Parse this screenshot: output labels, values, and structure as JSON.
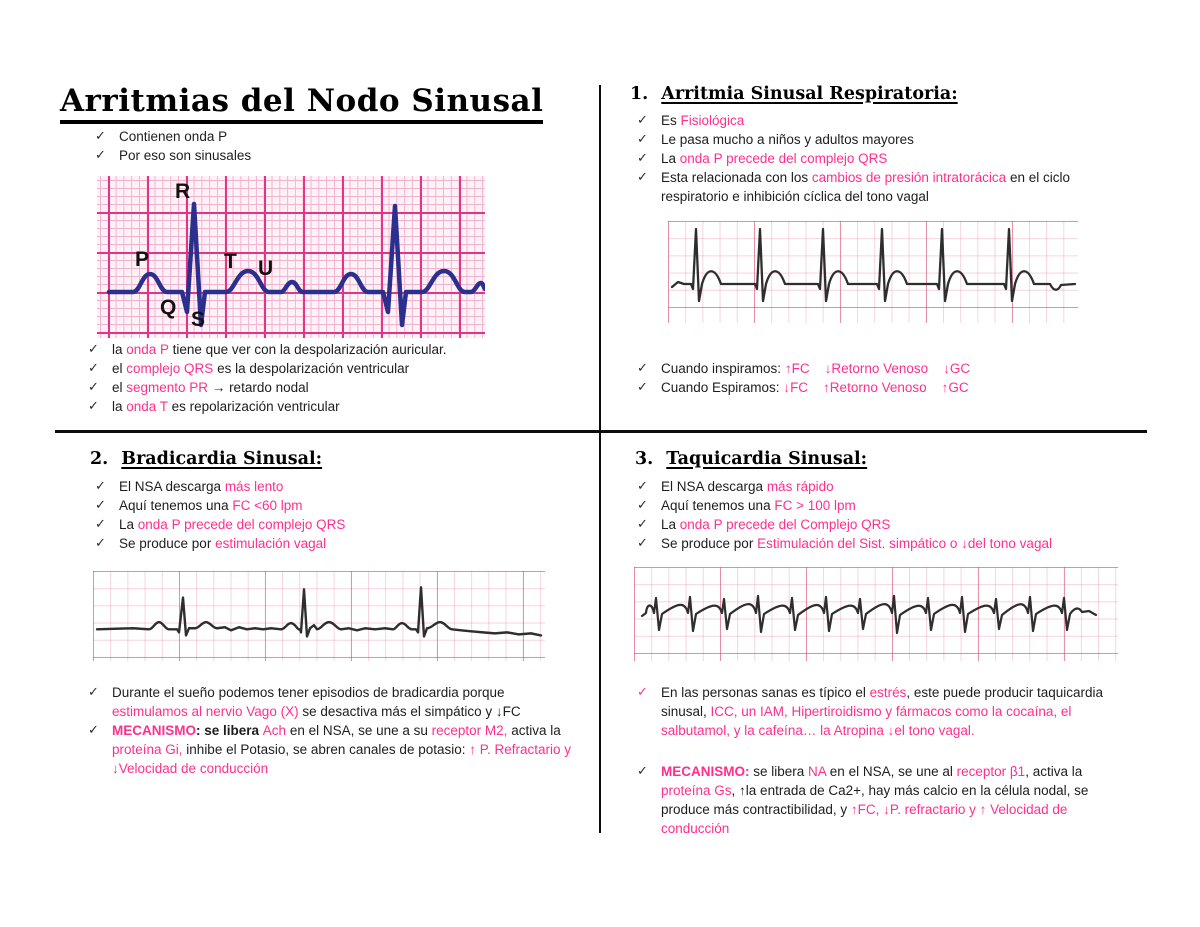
{
  "colors": {
    "pink_text": "#ff2f8e",
    "body_text": "#1d1d1d",
    "ecg_trace_navy": "#2b2f8e",
    "ecg_grid_pink": "#e73384",
    "strip_trace": "#2e2e2e"
  },
  "icons": {
    "check": "✓"
  },
  "title": "Arritmias del Nodo Sinusal",
  "top_left": {
    "intro": [
      [
        {
          "t": "Contienen onda P",
          "s": "k"
        }
      ],
      [
        {
          "t": "Por eso son sinusales",
          "s": "k"
        }
      ]
    ],
    "ecg_labels": [
      "P",
      "Q",
      "R",
      "S",
      "T",
      "U"
    ],
    "notes": [
      [
        {
          "t": "la ",
          "s": "k"
        },
        {
          "t": "onda P",
          "s": "p"
        },
        {
          "t": " tiene que ver con la despolarización auricular.",
          "s": "k"
        }
      ],
      [
        {
          "t": "el ",
          "s": "k"
        },
        {
          "t": "complejo QRS",
          "s": "p"
        },
        {
          "t": " es la despolarización ventricular",
          "s": "k"
        }
      ],
      [
        {
          "t": "el ",
          "s": "k"
        },
        {
          "t": "segmento PR",
          "s": "p"
        },
        {
          "t": " → retardo nodal",
          "s": "k"
        }
      ],
      [
        {
          "t": "la ",
          "s": "k"
        },
        {
          "t": "onda T",
          "s": "p"
        },
        {
          "t": " es repolarización ventricular",
          "s": "k"
        }
      ]
    ]
  },
  "sections": [
    {
      "num": "1.",
      "heading": "Arritmia Sinusal Respiratoria:",
      "bullets": [
        [
          {
            "t": "Es ",
            "s": "k"
          },
          {
            "t": "Fisiológica",
            "s": "p"
          }
        ],
        [
          {
            "t": "Le pasa mucho a niños y adultos mayores",
            "s": "k"
          }
        ],
        [
          {
            "t": "La ",
            "s": "k"
          },
          {
            "t": "onda P precede del complejo QRS",
            "s": "p"
          }
        ],
        [
          {
            "t": "Esta relacionada con los ",
            "s": "k"
          },
          {
            "t": "cambios de presión intratorácica",
            "s": "p"
          },
          {
            "t": " en el ciclo respiratorio e inhibición cíclica del tono vagal",
            "s": "k"
          }
        ]
      ],
      "notes": [
        {
          "segments": [
            {
              "t": "Cuando inspiramos: ",
              "s": "k"
            },
            {
              "t": "↑FC    ↓Retorno Venoso    ↓GC",
              "s": "p"
            }
          ]
        },
        {
          "segments": [
            {
              "t": "Cuando Espiramos: ",
              "s": "k"
            },
            {
              "t": "↓FC    ↑Retorno Venoso    ↑GC",
              "s": "p"
            }
          ]
        }
      ]
    },
    {
      "num": "2.",
      "heading": "Bradicardia Sinusal:",
      "bullets": [
        [
          {
            "t": "El NSA descarga ",
            "s": "k"
          },
          {
            "t": "más lento",
            "s": "p"
          }
        ],
        [
          {
            "t": "Aquí tenemos una ",
            "s": "k"
          },
          {
            "t": "FC <60 lpm",
            "s": "p"
          }
        ],
        [
          {
            "t": "La ",
            "s": "k"
          },
          {
            "t": "onda P precede del complejo QRS",
            "s": "p"
          }
        ],
        [
          {
            "t": "Se produce por ",
            "s": "k"
          },
          {
            "t": "estimulación vagal",
            "s": "p"
          }
        ]
      ],
      "notes": [
        {
          "segments": [
            {
              "t": "Durante el sueño podemos tener episodios de bradicardia porque ",
              "s": "k"
            },
            {
              "t": "estimulamos al nervio Vago (X)",
              "s": "p"
            },
            {
              "t": " se desactiva más el simpático y ↓FC",
              "s": "k"
            }
          ]
        },
        {
          "segments": [
            {
              "t": "MECANISMO",
              "s": "pb"
            },
            {
              "t": ": se libera ",
              "s": "bk"
            },
            {
              "t": "Ach",
              "s": "p"
            },
            {
              "t": " en el NSA, se une a su ",
              "s": "k"
            },
            {
              "t": "receptor M2,",
              "s": "p"
            },
            {
              "t": " activa la ",
              "s": "k"
            },
            {
              "t": "proteína Gi,",
              "s": "p"
            },
            {
              "t": " inhibe el Potasio, se abren canales de potasio: ",
              "s": "k"
            },
            {
              "t": "↑ P. Refractario y ↓Velocidad de conducción",
              "s": "p"
            }
          ]
        }
      ]
    },
    {
      "num": "3.",
      "heading": "Taquicardia Sinusal:",
      "bullets": [
        [
          {
            "t": "El NSA descarga ",
            "s": "k"
          },
          {
            "t": "más rápido",
            "s": "p"
          }
        ],
        [
          {
            "t": "Aquí tenemos una ",
            "s": "k"
          },
          {
            "t": "FC > 100 lpm",
            "s": "p"
          }
        ],
        [
          {
            "t": "La ",
            "s": "k"
          },
          {
            "t": "onda P precede del Complejo QRS",
            "s": "p"
          }
        ],
        [
          {
            "t": "Se produce por ",
            "s": "k"
          },
          {
            "t": "Estimulación del Sist. simpático o ↓del tono vagal",
            "s": "p"
          }
        ]
      ],
      "notes": [
        {
          "segments": [
            {
              "t": "En las personas sanas es típico el ",
              "s": "k"
            },
            {
              "t": "estrés",
              "s": "p"
            },
            {
              "t": ", este puede producir taquicardia sinusal, ",
              "s": "k"
            },
            {
              "t": "ICC, un IAM, Hipertiroidismo y fármacos como la cocaína, el salbutamol, y la cafeína… la Atropina ↓el tono vagal.",
              "s": "p"
            }
          ]
        },
        {
          "segments": [
            {
              "t": "MECANISMO:",
              "s": "pb"
            },
            {
              "t": " se libera ",
              "s": "k"
            },
            {
              "t": "NA",
              "s": "p"
            },
            {
              "t": " en el NSA, se une al ",
              "s": "k"
            },
            {
              "t": "receptor β1",
              "s": "p"
            },
            {
              "t": ", activa la ",
              "s": "k"
            },
            {
              "t": "proteína Gs",
              "s": "p"
            },
            {
              "t": ", ↑la entrada de Ca2+, hay más calcio en la célula nodal, se produce más contractibilidad, y ",
              "s": "k"
            },
            {
              "t": "↑FC, ↓P. refractario y ↑ Velocidad de conducción",
              "s": "p"
            }
          ]
        }
      ]
    }
  ]
}
